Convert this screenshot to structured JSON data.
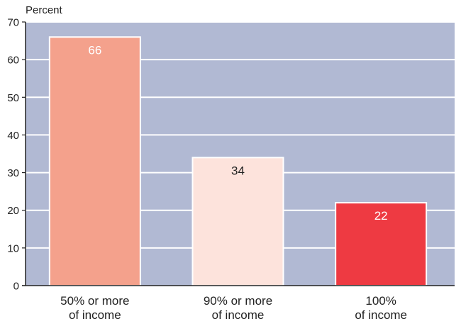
{
  "chart_data": {
    "type": "bar",
    "ylabel": "Percent",
    "ylim": [
      0,
      70
    ],
    "yticks": [
      0,
      10,
      20,
      30,
      40,
      50,
      60,
      70
    ],
    "grid": true,
    "categories": [
      [
        "50% or more",
        "of income"
      ],
      [
        "90% or more",
        "of income"
      ],
      [
        "100%",
        "of income"
      ]
    ],
    "values": [
      66,
      34,
      22
    ],
    "bar_colors": [
      "#f4a18c",
      "#fde3dc",
      "#ee3a42"
    ],
    "label_colors": [
      "#ffffff",
      "#222222",
      "#ffffff"
    ],
    "plot_background": "#b1b9d3",
    "grid_color": "#ffffff"
  }
}
